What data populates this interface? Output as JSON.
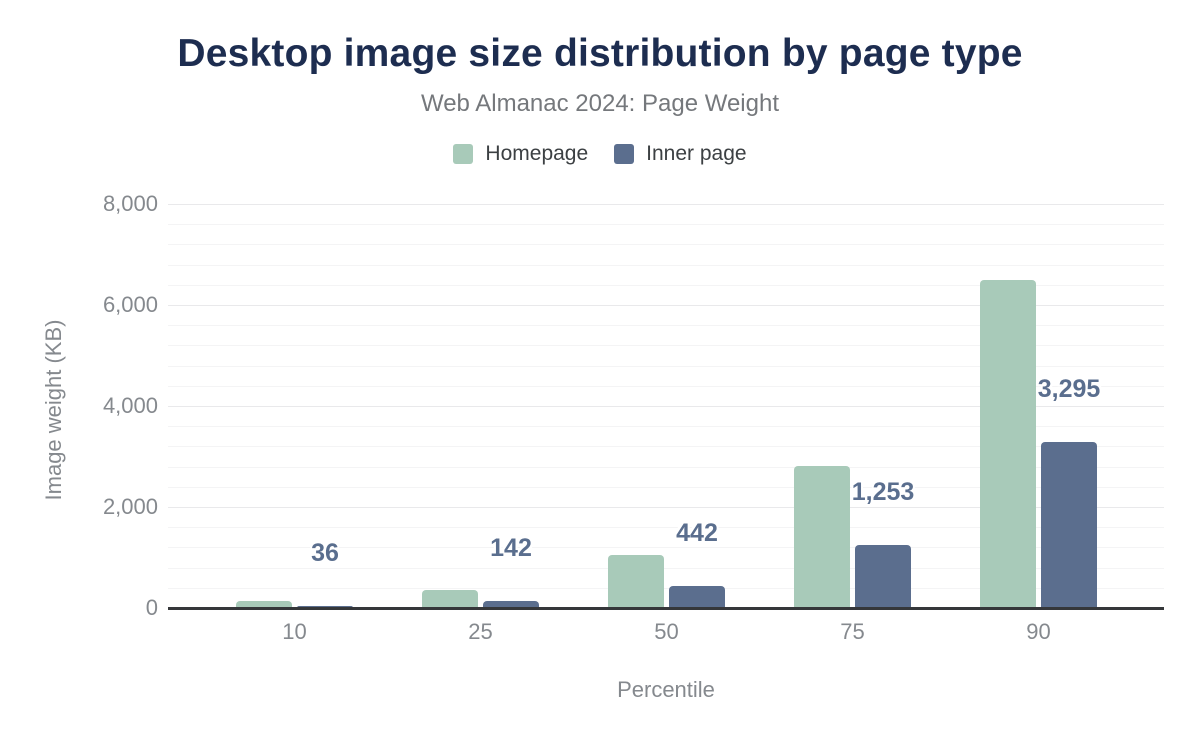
{
  "title": "Desktop image size distribution by page type",
  "subtitle": "Web Almanac 2024: Page Weight",
  "legend": {
    "position": "top",
    "items": [
      {
        "label": "Homepage",
        "color": "#a8cab9"
      },
      {
        "label": "Inner page",
        "color": "#5b6e8e"
      }
    ]
  },
  "chart_data": {
    "type": "bar",
    "title": "Desktop image size distribution by page type",
    "subtitle": "Web Almanac 2024: Page Weight",
    "xlabel": "Percentile",
    "ylabel": "Image weight (KB)",
    "categories": [
      "10",
      "25",
      "50",
      "75",
      "90"
    ],
    "series": [
      {
        "name": "Homepage",
        "color": "#a8cab9",
        "values": [
          140,
          350,
          1040,
          2820,
          6500
        ],
        "data_labels": null
      },
      {
        "name": "Inner page",
        "color": "#5b6e8e",
        "values": [
          36,
          142,
          442,
          1253,
          3295
        ],
        "data_labels": [
          "36",
          "142",
          "442",
          "1,253",
          "3,295"
        ]
      }
    ],
    "ylim": [
      0,
      8000
    ],
    "yticks": [
      {
        "value": 0,
        "label": "0"
      },
      {
        "value": 2000,
        "label": "2,000"
      },
      {
        "value": 4000,
        "label": "4,000"
      },
      {
        "value": 6000,
        "label": "6,000"
      },
      {
        "value": 8000,
        "label": "8,000"
      }
    ],
    "grid": {
      "visible": true,
      "minor_step": 400,
      "major_step": 2000
    },
    "legend_position": "top",
    "data_label_color": "#5a6e8e",
    "axis_line_color": "#35373a"
  }
}
